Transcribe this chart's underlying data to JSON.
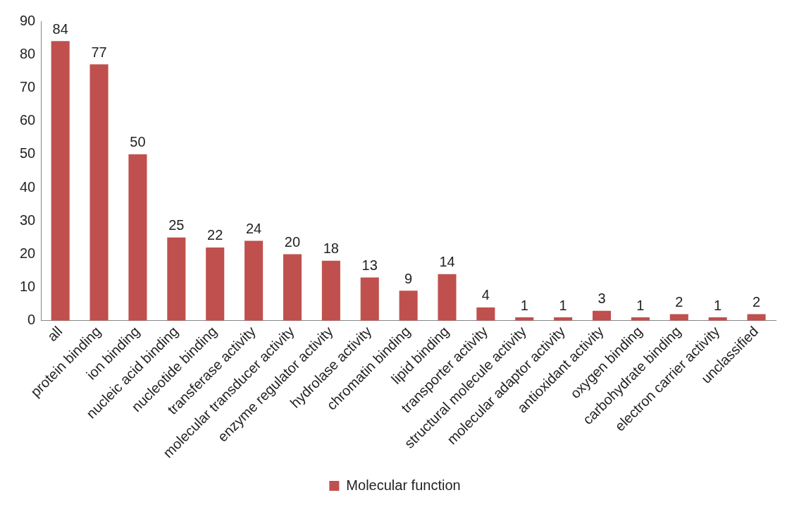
{
  "chart_data": {
    "type": "bar",
    "categories": [
      "all",
      "protein binding",
      "ion binding",
      "nucleic acid binding",
      "nucleotide binding",
      "transferase activity",
      "molecular transducer activity",
      "enzyme regulator activity",
      "hydrolase activity",
      "chromatin binding",
      "lipid binding",
      "transporter activity",
      "structural molecule activity",
      "molecular adaptor activity",
      "antioxidant activity",
      "oxygen binding",
      "carbohydrate binding",
      "electron carrier activity",
      "unclassified"
    ],
    "series": [
      {
        "name": "Molecular function",
        "color": "#c0504d",
        "values": [
          84,
          77,
          50,
          25,
          22,
          24,
          20,
          18,
          13,
          9,
          14,
          4,
          1,
          1,
          3,
          1,
          2,
          1,
          2
        ]
      }
    ],
    "ylim": [
      0,
      90
    ],
    "yticks": [
      0,
      10,
      20,
      30,
      40,
      50,
      60,
      70,
      80,
      90
    ],
    "grid": false,
    "legend": "bottom",
    "data_labels": true
  }
}
